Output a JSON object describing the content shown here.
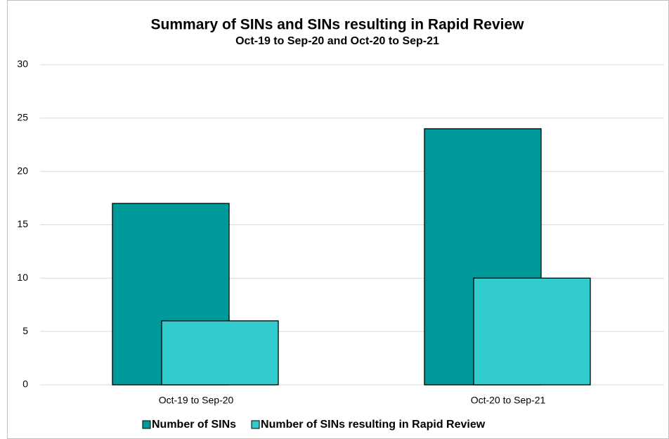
{
  "chart_data": {
    "type": "bar",
    "title": "Summary of SINs and SINs resulting in Rapid Review",
    "subtitle": "Oct-19 to Sep-20 and Oct-20 to Sep-21",
    "categories": [
      "Oct-19 to Sep-20",
      "Oct-20 to Sep-21"
    ],
    "series": [
      {
        "name": "Number of SINs",
        "color": "#009999",
        "values": [
          17,
          24
        ]
      },
      {
        "name": "Number of SINs resulting in Rapid Review",
        "color": "#33cccc",
        "values": [
          6,
          10
        ]
      }
    ],
    "ylim": [
      0,
      30
    ],
    "yticks": [
      0,
      5,
      10,
      15,
      20,
      25,
      30
    ],
    "grid": true,
    "legend": "bottom"
  }
}
